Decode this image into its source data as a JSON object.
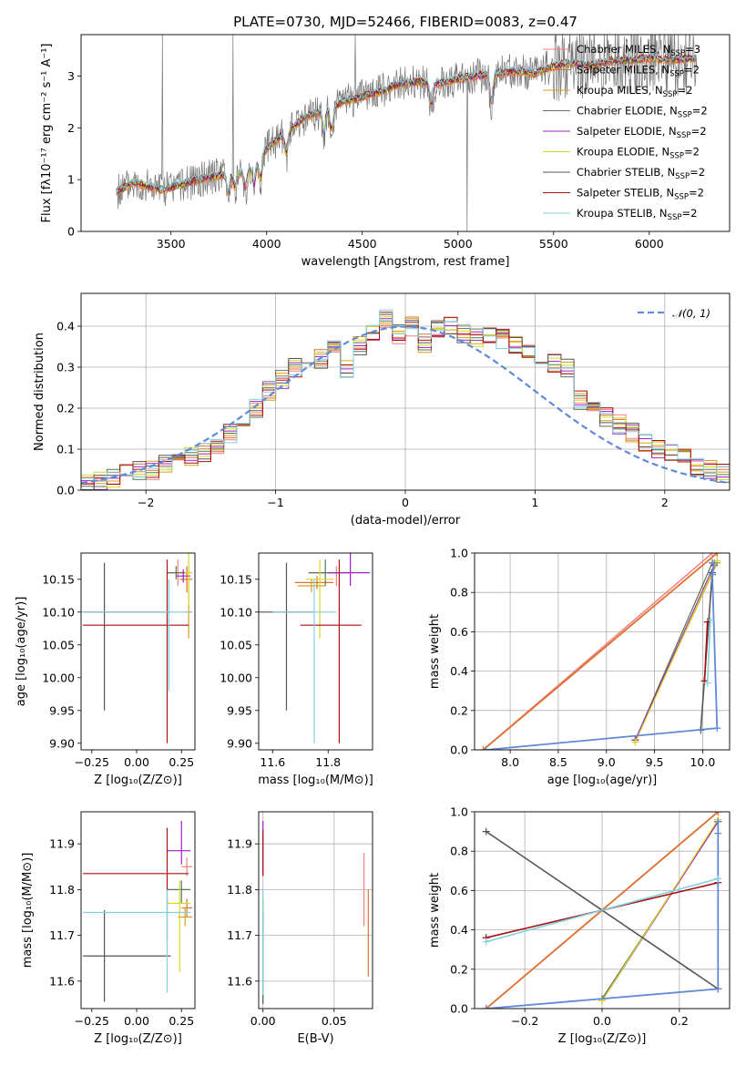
{
  "colors": [
    "#f08080",
    "#e07030",
    "#d4a020",
    "#557755",
    "#a020c0",
    "#d8d820",
    "#555555",
    "#aa1010",
    "#80d0e0"
  ],
  "spectrum": {
    "title": "PLATE=0730, MJD=52466, FIBERID=0083, z=0.47",
    "xlabel": "wavelength [Angstrom, rest frame]",
    "ylabel": "Flux [fλ10⁻¹⁷ erg cm⁻² s⁻¹ A⁻¹]",
    "xticks": [
      "3500",
      "4000",
      "4500",
      "5000",
      "5500",
      "6000"
    ],
    "yticks": [
      "0",
      "1",
      "2",
      "3"
    ],
    "legend": [
      "Chabrier MILES, N",
      "Salpeter MILES, N",
      "Kroupa MILES, N",
      "Chabrier ELODIE, N",
      "Salpeter ELODIE, N",
      "Kroupa ELODIE, N",
      "Chabrier STELIB, N",
      "Salpeter STELIB, N",
      "Kroupa STELIB, N"
    ],
    "legend_sub": "SSP",
    "legend_n": [
      "=3",
      "=2",
      "=2",
      "=2",
      "=2",
      "=2",
      "=2",
      "=2",
      "=2"
    ]
  },
  "chart_data": [
    {
      "type": "line",
      "title": "PLATE=0730, MJD=52466, FIBERID=0083, z=0.47",
      "xlim": [
        3030,
        6420
      ],
      "ylim": [
        0,
        3.8
      ],
      "x_range_observed": [
        3215,
        6250
      ],
      "continuum": {
        "x": [
          3215,
          3300,
          3450,
          3600,
          3700,
          3800,
          3900,
          4000,
          4100,
          4200,
          4300,
          4400,
          4500,
          4600,
          4700,
          4800,
          4900,
          5000,
          5100,
          5200,
          5300,
          5400,
          5500,
          5600,
          5700,
          5800,
          5900,
          6000,
          6100,
          6250
        ],
        "y": [
          0.75,
          0.95,
          0.8,
          0.95,
          1.05,
          1.1,
          1.15,
          1.6,
          1.9,
          2.2,
          2.35,
          2.5,
          2.6,
          2.7,
          2.85,
          2.9,
          2.85,
          2.95,
          3.0,
          3.05,
          3.1,
          3.05,
          3.2,
          3.25,
          3.2,
          3.3,
          3.3,
          3.35,
          3.3,
          3.35
        ]
      }
    },
    {
      "type": "line",
      "title": "",
      "xlabel": "(data-model)/error",
      "ylabel": "Normed distribution",
      "xlim": [
        -2.5,
        2.5
      ],
      "ylim": [
        0,
        0.48
      ],
      "xticks": [
        "−2",
        "−1",
        "0",
        "1",
        "2"
      ],
      "yticks": [
        "0.0",
        "0.1",
        "0.2",
        "0.3",
        "0.4"
      ],
      "legend": "𝒩(0, 1)",
      "grid": true,
      "hist_bins": [
        -2.5,
        -2.4,
        -2.3,
        -2.2,
        -2.1,
        -2.0,
        -1.9,
        -1.8,
        -1.7,
        -1.6,
        -1.5,
        -1.4,
        -1.3,
        -1.2,
        -1.1,
        -1.0,
        -0.9,
        -0.8,
        -0.7,
        -0.6,
        -0.5,
        -0.4,
        -0.3,
        -0.2,
        -0.1,
        0.0,
        0.1,
        0.2,
        0.3,
        0.4,
        0.5,
        0.6,
        0.7,
        0.8,
        0.9,
        1.0,
        1.1,
        1.2,
        1.3,
        1.4,
        1.5,
        1.6,
        1.7,
        1.8,
        1.9,
        2.0,
        2.1,
        2.2,
        2.3,
        2.4,
        2.5
      ],
      "hist_base": [
        0.02,
        0.025,
        0.03,
        0.04,
        0.05,
        0.05,
        0.06,
        0.07,
        0.08,
        0.09,
        0.1,
        0.14,
        0.16,
        0.2,
        0.24,
        0.27,
        0.3,
        0.3,
        0.32,
        0.34,
        0.3,
        0.35,
        0.38,
        0.42,
        0.38,
        0.4,
        0.36,
        0.39,
        0.4,
        0.38,
        0.37,
        0.38,
        0.37,
        0.35,
        0.33,
        0.32,
        0.31,
        0.3,
        0.22,
        0.2,
        0.18,
        0.16,
        0.14,
        0.12,
        0.1,
        0.09,
        0.08,
        0.06,
        0.05,
        0.04
      ]
    },
    {
      "type": "scatter",
      "xlabel": "Z [log₁₀(Z/Z⊙)]",
      "ylabel": "age [log₁₀(age/yr)]",
      "xlim": [
        -0.31,
        0.325
      ],
      "ylim": [
        9.89,
        10.19
      ],
      "xticks": [
        "−0.25",
        "0.00",
        "0.25"
      ],
      "yticks": [
        "9.90",
        "9.95",
        "10.00",
        "10.05",
        "10.10",
        "10.15"
      ],
      "points": [
        {
          "x": 0.23,
          "y": 10.16,
          "xerr": [
            0.06,
            0.05
          ],
          "yerr": [
            0.02,
            0.02
          ]
        },
        {
          "x": 0.28,
          "y": 10.15,
          "xerr": [
            0.04,
            0.03
          ],
          "yerr": [
            0.02,
            0.02
          ]
        },
        {
          "x": 0.29,
          "y": 10.1,
          "xerr": [
            0.02,
            0.02
          ],
          "yerr": [
            0.04,
            0.07
          ]
        },
        {
          "x": 0.22,
          "y": 10.16,
          "xerr": [
            0.05,
            0.05
          ],
          "yerr": [
            0.01,
            0.01
          ]
        },
        {
          "x": 0.26,
          "y": 10.155,
          "xerr": [
            0.04,
            0.04
          ],
          "yerr": [
            0.01,
            0.01
          ]
        },
        {
          "x": 0.29,
          "y": 10.16,
          "xerr": [
            0.02,
            0.02
          ],
          "yerr": [
            0.05,
            0.1
          ]
        },
        {
          "x": -0.18,
          "y": 10.1,
          "xerr": [
            0.12,
            0.37
          ],
          "yerr": [
            0.15,
            0.075
          ]
        },
        {
          "x": 0.17,
          "y": 10.08,
          "xerr": [
            0.47,
            0.12
          ],
          "yerr": [
            0.18,
            0.1
          ]
        },
        {
          "x": 0.18,
          "y": 10.1,
          "xerr": [
            0.5,
            0.12
          ],
          "yerr": [
            0.12,
            0.05
          ]
        }
      ]
    },
    {
      "type": "scatter",
      "xlabel": "mass [log₁₀(M/M⊙)]",
      "xlim": [
        11.55,
        11.96
      ],
      "ylim": [
        9.89,
        10.19
      ],
      "xticks": [
        "11.6",
        "11.8"
      ],
      "yticks": [
        "9.90",
        "9.95",
        "10.00",
        "10.05",
        "10.10",
        "10.15"
      ],
      "points": [
        {
          "x": 11.83,
          "y": 10.16,
          "xerr": [
            0.1,
            0.05
          ],
          "yerr": [
            0.02,
            0.01
          ]
        },
        {
          "x": 11.76,
          "y": 10.145,
          "xerr": [
            0.08,
            0.06
          ],
          "yerr": [
            0.01,
            0.01
          ]
        },
        {
          "x": 11.74,
          "y": 10.14,
          "xerr": [
            0.05,
            0.05
          ],
          "yerr": [
            0.01,
            0.01
          ]
        },
        {
          "x": 11.79,
          "y": 10.16,
          "xerr": [
            0.06,
            0.06
          ],
          "yerr": [
            0.02,
            0.02
          ]
        },
        {
          "x": 11.88,
          "y": 10.16,
          "xerr": [
            0.08,
            0.07
          ],
          "yerr": [
            0.02,
            0.03
          ]
        },
        {
          "x": 11.77,
          "y": 10.15,
          "xerr": [
            0.05,
            0.05
          ],
          "yerr": [
            0.09,
            0.03
          ]
        },
        {
          "x": 11.65,
          "y": 10.1,
          "xerr": [
            0.1,
            0.1
          ],
          "yerr": [
            0.15,
            0.075
          ]
        },
        {
          "x": 11.84,
          "y": 10.08,
          "xerr": [
            0.14,
            0.08
          ],
          "yerr": [
            0.18,
            0.1
          ]
        },
        {
          "x": 11.75,
          "y": 10.1,
          "xerr": [
            0.15,
            0.08
          ],
          "yerr": [
            0.2,
            0.05
          ]
        }
      ]
    },
    {
      "type": "line",
      "xlabel": "age  [log₁₀(age/yr)]",
      "ylabel": "mass weight",
      "xlim": [
        7.63,
        10.28
      ],
      "ylim": [
        0,
        1
      ],
      "xticks": [
        "8.0",
        "8.5",
        "9.0",
        "9.5",
        "10.0"
      ],
      "yticks": [
        "0.0",
        "0.2",
        "0.4",
        "0.6",
        "0.8",
        "1.0"
      ],
      "grid": true,
      "series": [
        {
          "x": [
            7.72,
            10.1
          ],
          "y": [
            0.0,
            1.0
          ]
        },
        {
          "x": [
            7.72,
            10.15
          ],
          "y": [
            0.0,
            1.0
          ]
        },
        {
          "x": [
            9.3,
            10.15
          ],
          "y": [
            0.05,
            0.95
          ]
        },
        {
          "x": [
            9.3,
            10.1
          ],
          "y": [
            0.05,
            0.95
          ]
        },
        {
          "x": [
            9.3,
            10.12
          ],
          "y": [
            0.05,
            0.94
          ]
        },
        {
          "x": [
            9.3,
            10.15
          ],
          "y": [
            0.04,
            0.96
          ]
        },
        {
          "x": [
            9.98,
            10.1
          ],
          "y": [
            0.1,
            0.9
          ]
        },
        {
          "x": [
            10.02,
            10.05
          ],
          "y": [
            0.35,
            0.65
          ]
        },
        {
          "x": [
            7.75,
            10.15,
            10.1,
            10.12
          ],
          "y": [
            0.0,
            0.11,
            0.89,
            0.95
          ]
        },
        {
          "x": [
            10.05,
            10.08
          ],
          "y": [
            0.34,
            0.66
          ]
        }
      ]
    },
    {
      "type": "scatter",
      "xlabel": "Z [log₁₀(Z/Z⊙)]",
      "ylabel": "mass [log₁₀(M/M⊙)]",
      "xlim": [
        -0.31,
        0.325
      ],
      "ylim": [
        11.54,
        11.97
      ],
      "xticks": [
        "−0.25",
        "0.00",
        "0.25"
      ],
      "yticks": [
        "11.6",
        "11.7",
        "11.8",
        "11.9"
      ],
      "points": [
        {
          "x": 0.28,
          "y": 11.85,
          "xerr": [
            0.03,
            0.03
          ],
          "yerr": [
            0.02,
            0.02
          ]
        },
        {
          "x": 0.28,
          "y": 11.76,
          "xerr": [
            0.03,
            0.03
          ],
          "yerr": [
            0.02,
            0.02
          ]
        },
        {
          "x": 0.27,
          "y": 11.74,
          "xerr": [
            0.04,
            0.04
          ],
          "yerr": [
            0.02,
            0.02
          ]
        },
        {
          "x": 0.25,
          "y": 11.8,
          "xerr": [
            0.08,
            0.05
          ],
          "yerr": [
            0.03,
            0.02
          ]
        },
        {
          "x": 0.25,
          "y": 11.885,
          "xerr": [
            0.08,
            0.05
          ],
          "yerr": [
            0.03,
            0.065
          ]
        },
        {
          "x": 0.24,
          "y": 11.77,
          "xerr": [
            0.07,
            0.06
          ],
          "yerr": [
            0.15,
            0.05
          ]
        },
        {
          "x": -0.18,
          "y": 11.655,
          "xerr": [
            0.12,
            0.37
          ],
          "yerr": [
            0.1,
            0.1
          ]
        },
        {
          "x": 0.17,
          "y": 11.835,
          "xerr": [
            0.47,
            0.12
          ],
          "yerr": [
            0.145,
            0.1
          ]
        },
        {
          "x": 0.17,
          "y": 11.75,
          "xerr": [
            0.47,
            0.13
          ],
          "yerr": [
            0.175,
            0.05
          ]
        }
      ]
    },
    {
      "type": "scatter",
      "xlabel": "E(B-V)",
      "xlim": [
        -0.003,
        0.077
      ],
      "ylim": [
        11.54,
        11.97
      ],
      "xticks": [
        "0.00",
        "0.05"
      ],
      "yticks": [
        "11.6",
        "11.7",
        "11.8",
        "11.9"
      ],
      "grid": true,
      "points": [
        {
          "x": 0.071,
          "y": 11.8,
          "xerr": [
            0,
            0
          ],
          "yerr": [
            0.08,
            0.08
          ]
        },
        {
          "x": 0.074,
          "y": 11.7,
          "xerr": [
            0,
            0
          ],
          "yerr": [
            0.09,
            0.1
          ]
        },
        {
          "x": 0.0,
          "y": 11.75,
          "xerr": [
            0,
            0
          ],
          "yerr": [
            0.02,
            0.02
          ]
        },
        {
          "x": 0.0,
          "y": 11.75,
          "xerr": [
            0,
            0
          ],
          "yerr": [
            0.03,
            0.03
          ]
        },
        {
          "x": 0.0,
          "y": 11.89,
          "xerr": [
            0,
            0
          ],
          "yerr": [
            0.06,
            0.06
          ]
        },
        {
          "x": 0.0,
          "y": 11.75,
          "xerr": [
            0,
            0
          ],
          "yerr": [
            0.03,
            0.03
          ]
        },
        {
          "x": 0.0,
          "y": 11.65,
          "xerr": [
            0,
            0
          ],
          "yerr": [
            0.1,
            0.1
          ]
        },
        {
          "x": 0.0,
          "y": 11.88,
          "xerr": [
            0,
            0
          ],
          "yerr": [
            0.05,
            0.05
          ]
        },
        {
          "x": 0.0,
          "y": 11.75,
          "xerr": [
            0,
            0
          ],
          "yerr": [
            0.18,
            0.05
          ]
        }
      ]
    },
    {
      "type": "line",
      "xlabel": "Z [log₁₀(Z/Z⊙)]",
      "ylabel": "mass weight",
      "xlim": [
        -0.33,
        0.33
      ],
      "ylim": [
        0,
        1
      ],
      "xticks": [
        "−0.2",
        "0.0",
        "0.2"
      ],
      "yticks": [
        "0.0",
        "0.2",
        "0.4",
        "0.6",
        "0.8",
        "1.0"
      ],
      "grid": true,
      "series": [
        {
          "x": [
            -0.3,
            0.3
          ],
          "y": [
            0.0,
            1.0
          ]
        },
        {
          "x": [
            -0.3,
            0.3
          ],
          "y": [
            0.0,
            1.0
          ]
        },
        {
          "x": [
            0.0,
            0.3
          ],
          "y": [
            0.05,
            0.95
          ]
        },
        {
          "x": [
            0.0,
            0.3
          ],
          "y": [
            0.05,
            0.95
          ]
        },
        {
          "x": [
            0.0,
            0.3
          ],
          "y": [
            0.04,
            0.95
          ]
        },
        {
          "x": [
            0.0,
            0.3
          ],
          "y": [
            0.04,
            0.96
          ]
        },
        {
          "x": [
            -0.3,
            0.3
          ],
          "y": [
            0.9,
            0.1
          ]
        },
        {
          "x": [
            -0.3,
            0.3
          ],
          "y": [
            0.36,
            0.64
          ]
        },
        {
          "x": [
            -0.3,
            0.3,
            0.3,
            0.3
          ],
          "y": [
            0.0,
            0.1,
            0.89,
            0.95
          ]
        },
        {
          "x": [
            -0.3,
            0.3
          ],
          "y": [
            0.34,
            0.66
          ]
        }
      ]
    }
  ]
}
